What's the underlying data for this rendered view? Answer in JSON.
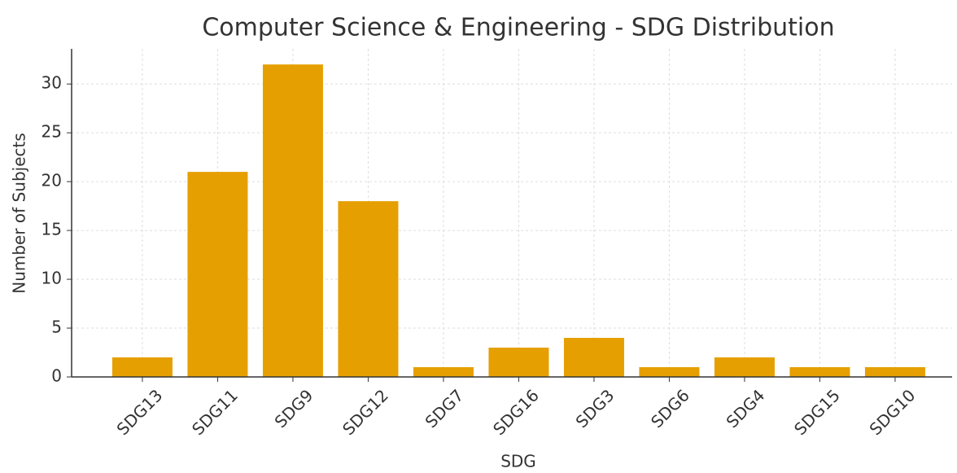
{
  "chart_data": {
    "type": "bar",
    "title": "Computer Science & Engineering - SDG Distribution",
    "xlabel": "SDG",
    "ylabel": "Number of Subjects",
    "categories": [
      "SDG13",
      "SDG11",
      "SDG9",
      "SDG12",
      "SDG7",
      "SDG16",
      "SDG3",
      "SDG6",
      "SDG4",
      "SDG15",
      "SDG10"
    ],
    "values": [
      2,
      21,
      32,
      18,
      1,
      3,
      4,
      1,
      2,
      1,
      1
    ],
    "color": "#e69f00",
    "ylim": [
      0,
      33.6
    ],
    "yticks": [
      0,
      5,
      10,
      15,
      20,
      25,
      30
    ],
    "grid": true
  }
}
